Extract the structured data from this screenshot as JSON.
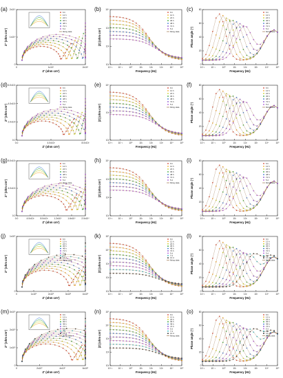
{
  "figure": {
    "legend_times": [
      "6 h",
      "12 h",
      "24 h",
      "36 h",
      "48 h",
      "72 h",
      "5 d"
    ],
    "legend_times_long": [
      "6 h",
      "12 h",
      "24 h",
      "36 h",
      "48 h",
      "72 h",
      "5 d",
      "7 d",
      "14 d"
    ],
    "fitting_label": "fitting data",
    "series_colors": [
      "#d23c2a",
      "#f5a623",
      "#c8cf1a",
      "#2ea12e",
      "#2e6fd1",
      "#7a3fc8",
      "#a94bd8",
      "#2bb3c0",
      "#222222"
    ],
    "fit_color": "#8a5a2b"
  },
  "chart_data": [
    {
      "panel": "(a)",
      "type": "scatter",
      "xlabel": "Z' (ohm cm²)",
      "ylabel": "Z'' (ohm cm²)",
      "x_ticks": [
        "0",
        "1x10⁴",
        "2x10⁴"
      ],
      "y_ticks": [
        "0",
        "1x10⁴",
        "2x10⁴"
      ],
      "inset": true
    },
    {
      "panel": "(b)",
      "type": "line",
      "log_x": true,
      "log_y": true,
      "xlabel": "Frequency (Hz)",
      "ylabel": "|Z| (ohm cm²)",
      "x_ticks": [
        "10⁻²",
        "10⁻¹",
        "10⁰",
        "10¹",
        "10²",
        "10³",
        "10⁴",
        "10⁵"
      ],
      "y_ticks": [
        "10¹",
        "10²",
        "10³",
        "10⁴"
      ]
    },
    {
      "panel": "(c)",
      "type": "line",
      "log_x": true,
      "xlabel": "Frequency (Hz)",
      "ylabel": "Phase angle (°)",
      "x_ticks": [
        "10⁻²",
        "10⁻¹",
        "10⁰",
        "10¹",
        "10²",
        "10³",
        "10⁴",
        "10⁵"
      ],
      "y_ticks": [
        "0",
        "20",
        "40",
        "60",
        "80"
      ]
    },
    {
      "panel": "(d)",
      "type": "scatter",
      "xlabel": "Z' (ohm cm²)",
      "ylabel": "Z'' (ohm cm²)",
      "x_ticks": [
        "0.0",
        "4.0x10³",
        "8.0x10³"
      ],
      "y_ticks": [
        "0.0",
        "2.0x10³",
        "4.0x10³",
        "6.0x10³"
      ],
      "inset": true
    },
    {
      "panel": "(e)",
      "type": "line",
      "log_x": true,
      "log_y": true,
      "xlabel": "Frequency (Hz)",
      "ylabel": "|Z| (ohm cm²)",
      "x_ticks": [
        "10⁻²",
        "10⁻¹",
        "10⁰",
        "10¹",
        "10²",
        "10³",
        "10⁴",
        "10⁵"
      ],
      "y_ticks": [
        "10²",
        "10³",
        "10⁴"
      ]
    },
    {
      "panel": "(f)",
      "type": "line",
      "log_x": true,
      "xlabel": "Frequency (Hz)",
      "ylabel": "Phase angle (°)",
      "x_ticks": [
        "10⁻²",
        "10⁻¹",
        "10⁰",
        "10¹",
        "10²",
        "10³",
        "10⁴",
        "10⁵"
      ],
      "y_ticks": [
        "0",
        "20",
        "40",
        "60",
        "80"
      ]
    },
    {
      "panel": "(g)",
      "type": "scatter",
      "xlabel": "Z' (ohm cm²)",
      "ylabel": "Z'' (ohm cm²)",
      "x_ticks": [
        "0.0",
        "4.0x10³",
        "8.0x10³",
        "1.2x10⁴",
        "1.6x10⁴",
        "2.0x10⁴"
      ],
      "y_ticks": [
        "0.0",
        "4.0x10³",
        "8.0x10³"
      ],
      "inset": true
    },
    {
      "panel": "(h)",
      "type": "line",
      "log_x": true,
      "log_y": true,
      "xlabel": "Frequency (Hz)",
      "ylabel": "|Z| (ohm cm²)",
      "x_ticks": [
        "10⁻²",
        "10⁻¹",
        "10⁰",
        "10¹",
        "10²",
        "10³",
        "10⁴",
        "10⁵"
      ],
      "y_ticks": [
        "10¹",
        "10²",
        "10³",
        "10⁴"
      ]
    },
    {
      "panel": "(i)",
      "type": "line",
      "log_x": true,
      "xlabel": "Frequency (Hz)",
      "ylabel": "Phase angle (°)",
      "x_ticks": [
        "10⁻²",
        "10⁻¹",
        "10⁰",
        "10¹",
        "10²",
        "10³",
        "10⁴",
        "10⁵"
      ],
      "y_ticks": [
        "0",
        "20",
        "40",
        "60",
        "80"
      ]
    },
    {
      "panel": "(j)",
      "type": "scatter",
      "xlabel": "Z' (ohm cm²)",
      "ylabel": "Z'' (ohm cm²)",
      "x_ticks": [
        "0",
        "1x10⁵",
        "2x10⁵",
        "3x10⁵",
        "4x10⁵"
      ],
      "y_ticks": [
        "0",
        "1x10⁵"
      ],
      "inset": true
    },
    {
      "panel": "(k)",
      "type": "line",
      "log_x": true,
      "log_y": true,
      "xlabel": "Frequency (Hz)",
      "ylabel": "|Z| (ohm cm²)",
      "x_ticks": [
        "10⁻²",
        "10⁻¹",
        "10⁰",
        "10¹",
        "10²",
        "10³",
        "10⁴",
        "10⁵"
      ],
      "y_ticks": [
        "10¹",
        "10²",
        "10³",
        "10⁴",
        "10⁵"
      ]
    },
    {
      "panel": "(l)",
      "type": "line",
      "log_x": true,
      "xlabel": "Frequency (Hz)",
      "ylabel": "Phase angle (°)",
      "x_ticks": [
        "10⁻²",
        "10⁻¹",
        "10⁰",
        "10¹",
        "10²",
        "10³",
        "10⁴",
        "10⁵"
      ],
      "y_ticks": [
        "0",
        "20",
        "40",
        "60",
        "80"
      ]
    },
    {
      "panel": "(m)",
      "type": "scatter",
      "xlabel": "Z' (ohm cm²)",
      "ylabel": "Z'' (ohm cm²)",
      "x_ticks": [
        "0",
        "2x10⁵",
        "4x10⁵",
        "6x10⁵"
      ],
      "y_ticks": [
        "0",
        "1x10⁵",
        "2x10⁵",
        "3x10⁵"
      ],
      "inset": true
    },
    {
      "panel": "(n)",
      "type": "line",
      "log_x": true,
      "log_y": true,
      "xlabel": "Frequency (Hz)",
      "ylabel": "|Z| (ohm cm²)",
      "x_ticks": [
        "10⁻²",
        "10⁻¹",
        "10⁰",
        "10¹",
        "10²",
        "10³",
        "10⁴",
        "10⁵"
      ],
      "y_ticks": [
        "10¹",
        "10²",
        "10³",
        "10⁴",
        "10⁵"
      ]
    },
    {
      "panel": "(o)",
      "type": "line",
      "log_x": true,
      "xlabel": "Frequency (Hz)",
      "ylabel": "Phase angle (°)",
      "x_ticks": [
        "10⁻²",
        "10⁻¹",
        "10⁰",
        "10¹",
        "10²",
        "10³",
        "10⁴",
        "10⁵"
      ],
      "y_ticks": [
        "0",
        "20",
        "40",
        "60",
        "80"
      ]
    }
  ]
}
